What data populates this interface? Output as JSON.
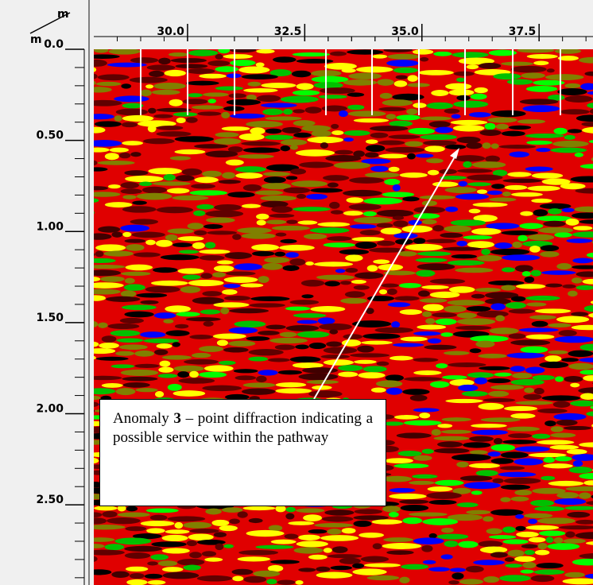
{
  "chart_data": {
    "type": "radargram",
    "x_label": "m",
    "y_label": "m",
    "xlim": [
      28.0,
      38.65
    ],
    "ylim": [
      0,
      2.94
    ],
    "xticks": [
      {
        "value": 30,
        "label": "30.0"
      },
      {
        "value": 32.5,
        "label": "32.5"
      },
      {
        "value": 35,
        "label": "35.0"
      },
      {
        "value": 37.5,
        "label": "37.5"
      }
    ],
    "yticks": [
      {
        "value": 0,
        "label": "0.0"
      },
      {
        "value": 0.5,
        "label": "0.50"
      },
      {
        "value": 1,
        "label": "1.00"
      },
      {
        "value": 1.5,
        "label": "1.50"
      },
      {
        "value": 2,
        "label": "2.00"
      },
      {
        "value": 2.5,
        "label": "2.50"
      }
    ],
    "annotation": {
      "text_before": "Anomaly",
      "number": "3",
      "text_after": "– point diffraction indicating a possible service within the pathway"
    }
  }
}
